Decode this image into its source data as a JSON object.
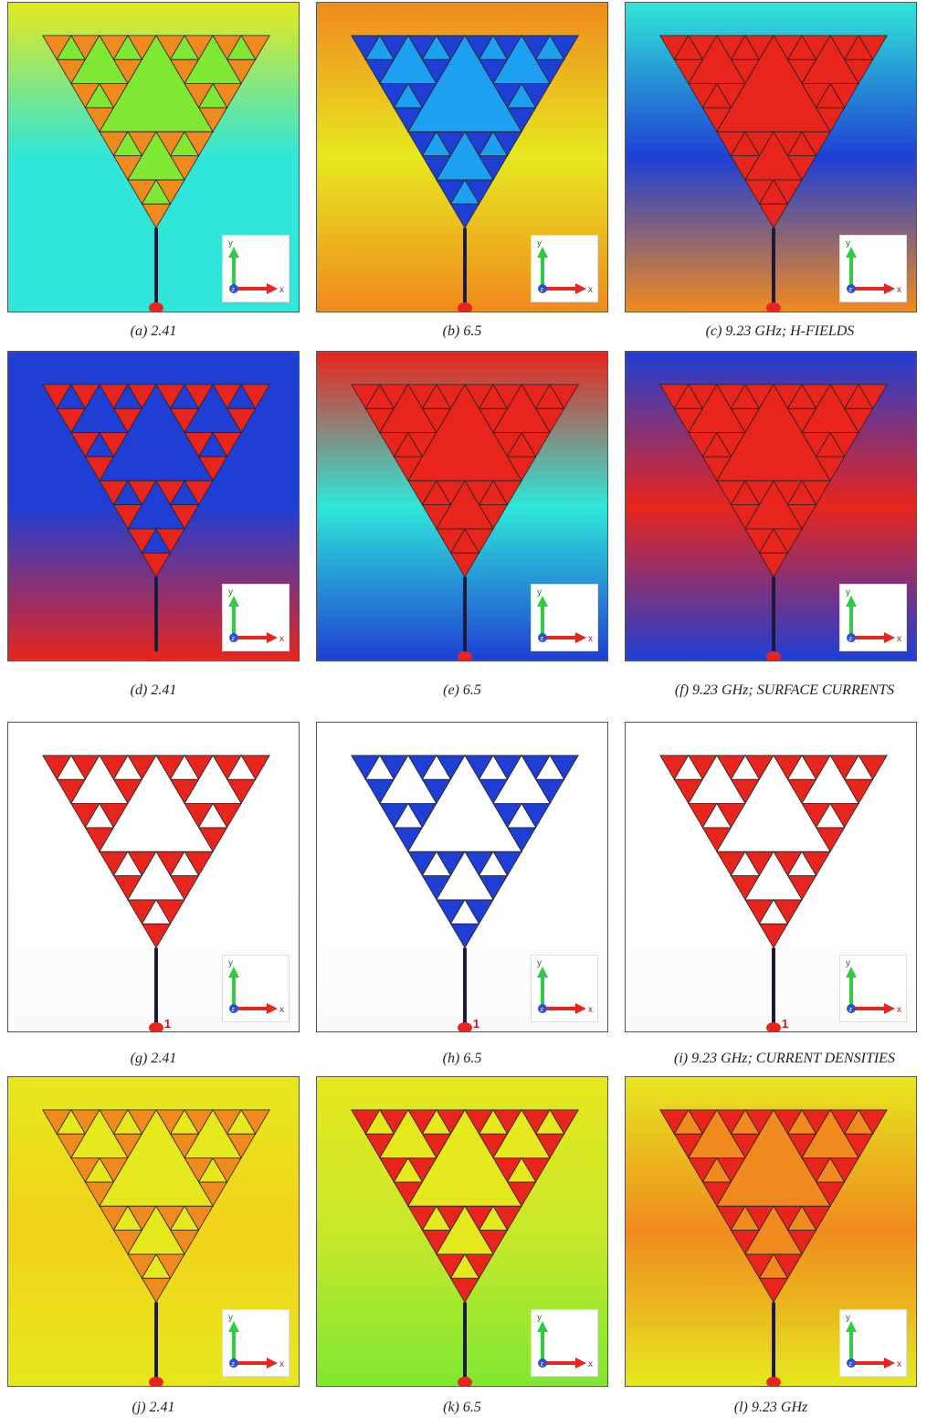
{
  "panels": [
    {
      "caption": "(a)  2.41",
      "field": "hfield",
      "freq": "2.41"
    },
    {
      "caption": "(b)  6.5",
      "field": "hfield",
      "freq": "6.5"
    },
    {
      "caption": "(c)  9.23  GHz;  H-FIELDS",
      "field": "hfield",
      "freq": "9.23"
    },
    {
      "caption": "(d)  2.41",
      "field": "surface",
      "freq": "2.41"
    },
    {
      "caption": "(e)  6.5",
      "field": "surface",
      "freq": "6.5"
    },
    {
      "caption": "(f)  9.23  GHz;  SURFACE  CURRENTS",
      "field": "surface",
      "freq": "9.23"
    },
    {
      "caption": "(g)  2.41",
      "field": "density",
      "freq": "2.41"
    },
    {
      "caption": "(h)  6.5",
      "field": "density",
      "freq": "6.5"
    },
    {
      "caption": "(i)  9.23  GHz;  CURRENT  DENSITIES",
      "field": "density",
      "freq": "9.23"
    },
    {
      "caption": "(j)  2.41",
      "field": "efield",
      "freq": "2.41"
    },
    {
      "caption": "(k)  6.5",
      "field": "efield",
      "freq": "6.5"
    },
    {
      "caption": "(l)  9.23  GHz",
      "field": "efield",
      "freq": "9.23"
    }
  ],
  "axis_labels": {
    "x": "x",
    "y": "y",
    "z": "z"
  },
  "port_label": "1",
  "colors": {
    "red": "#e8251c",
    "blue": "#1f3fd4",
    "cyan": "#2fe6d8",
    "yellow": "#e6e81e",
    "green": "#7fe832",
    "orange": "#f08a1e"
  }
}
